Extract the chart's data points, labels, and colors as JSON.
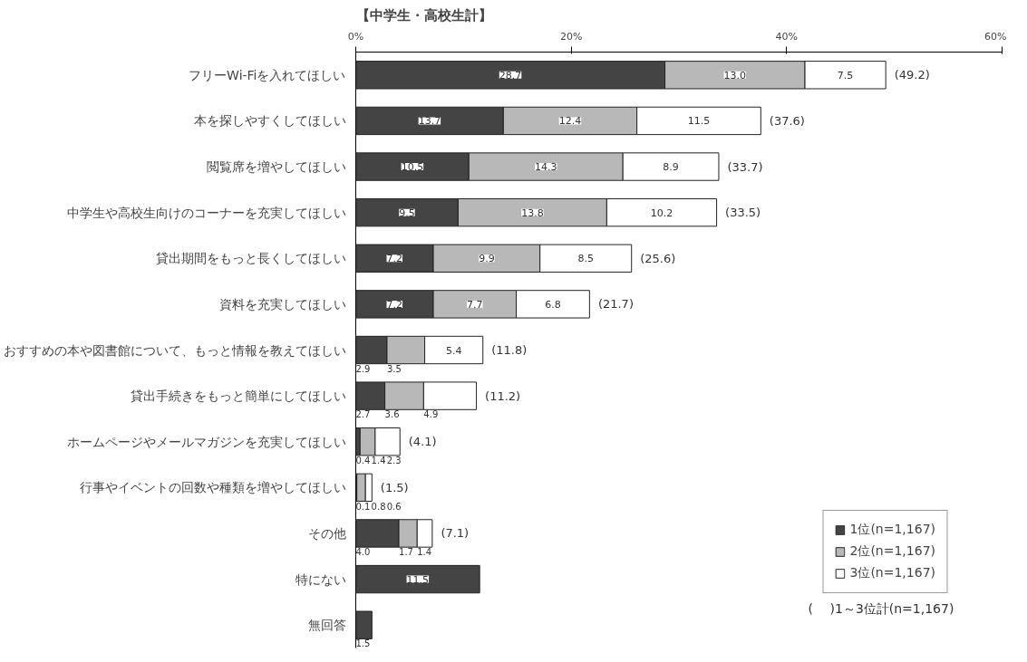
{
  "chart_data": {
    "type": "bar",
    "orientation": "horizontal",
    "stacked": true,
    "title": "【中学生・高校生計】",
    "categories": [
      "フリーWi-Fiを入れてほしい",
      "本を探しやすくしてほしい",
      "閲覧席を増やしてほしい",
      "中学生や高校生向けのコーナーを充実してほしい",
      "貸出期間をもっと長くしてほしい",
      "資料を充実してほしい",
      "おすすめの本や図書館について、もっと情報を教えてほしい",
      "貸出手続きをもっと簡単にしてほしい",
      "ホームページやメールマガジンを充実してほしい",
      "行事やイベントの回数や種類を増やしてほしい",
      "その他",
      "特にない",
      "無回答"
    ],
    "series": [
      {
        "name": "1位(n=1,167)",
        "color": "#444444",
        "values": [
          28.7,
          13.7,
          10.5,
          9.5,
          7.2,
          7.2,
          2.9,
          2.7,
          0.4,
          0.1,
          4.0,
          11.5,
          1.5
        ],
        "value_labels": [
          "28.7",
          "13.7",
          "10.5",
          "9.5",
          "7.2",
          "7.2",
          "2.9",
          "2.7",
          "0.4",
          "0.1",
          "4.0",
          "11.5",
          "1.5"
        ]
      },
      {
        "name": "2位(n=1,167)",
        "color": "#b8b8b8",
        "values": [
          13.0,
          12.4,
          14.3,
          13.8,
          9.9,
          7.7,
          3.5,
          3.6,
          1.4,
          0.8,
          1.7,
          null,
          null
        ],
        "value_labels": [
          "13.0",
          "12.4",
          "14.3",
          "13.8",
          "9.9",
          "7.7",
          "3.5",
          "3.6",
          "1.4",
          "0.8",
          "1.7",
          null,
          null
        ]
      },
      {
        "name": "3位(n=1,167)",
        "color": "#ffffff",
        "values": [
          7.5,
          11.5,
          8.9,
          10.2,
          8.5,
          6.8,
          5.4,
          4.9,
          2.3,
          0.6,
          1.4,
          null,
          null
        ],
        "value_labels": [
          "7.5",
          "11.5",
          "8.9",
          "10.2",
          "8.5",
          "6.8",
          "5.4",
          "4.9",
          "2.3",
          "0.6",
          "1.4",
          null,
          null
        ]
      }
    ],
    "data_labels": true,
    "totals": [
      "(49.2)",
      "(37.6)",
      "(33.7)",
      "(33.5)",
      "(25.6)",
      "(21.7)",
      "(11.8)",
      "(11.2)",
      "(4.1)",
      "(1.5)",
      "(7.1)",
      null,
      null
    ],
    "xlim": [
      0,
      60
    ],
    "xticks": [
      {
        "value": 0,
        "label": "0%"
      },
      {
        "value": 20,
        "label": "20%"
      },
      {
        "value": 40,
        "label": "40%"
      },
      {
        "value": 60,
        "label": "60%"
      }
    ],
    "legend": "bottom right",
    "annotations": [
      "(　 )1～3位計(n=1,167)"
    ]
  }
}
